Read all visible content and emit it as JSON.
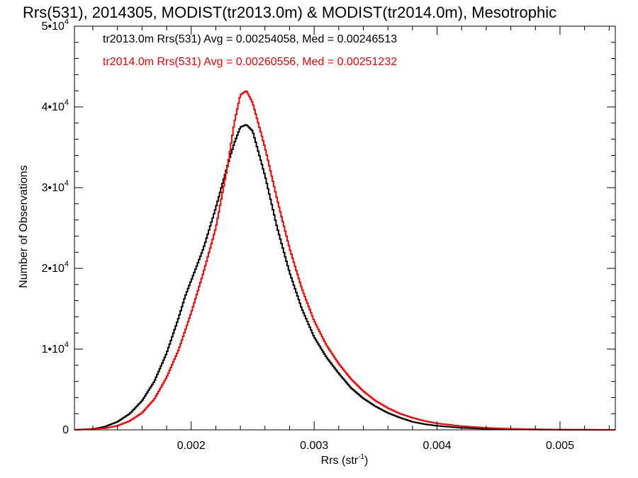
{
  "chart_data": {
    "type": "line",
    "title": "Rrs(531), 2014305, MODIST(tr2013.0m) & MODIST(tr2014.0m), Mesotrophic",
    "xlabel": "Rrs (str",
    "xlabel_sup": "-1",
    "xlabel_close": ")",
    "ylabel": "Number of Observations",
    "xlim": [
      0.00105,
      0.00545
    ],
    "ylim": [
      0,
      50000
    ],
    "x_ticks": [
      0.002,
      0.003,
      0.004,
      0.005
    ],
    "x_tick_labels": [
      "0.002",
      "0.003",
      "0.004",
      "0.005"
    ],
    "y_ticks": [
      0,
      10000,
      20000,
      30000,
      40000,
      50000
    ],
    "y_tick_labels": [
      {
        "mantissa": "0",
        "exp": ""
      },
      {
        "mantissa": "1•10",
        "exp": "4"
      },
      {
        "mantissa": "2•10",
        "exp": "4"
      },
      {
        "mantissa": "3•10",
        "exp": "4"
      },
      {
        "mantissa": "4•10",
        "exp": "4"
      },
      {
        "mantissa": "5•10",
        "exp": "4"
      }
    ],
    "grid": false,
    "legend_position": "top-left",
    "series": [
      {
        "name": "tr2013.0m",
        "label": "tr2013.0m Rrs(531) Avg = 0.00254058, Med = 0.00246513",
        "color": "#000000",
        "x": [
          0.00105,
          0.0012,
          0.0013,
          0.0014,
          0.0015,
          0.0016,
          0.0017,
          0.0018,
          0.0019,
          0.00195,
          0.002,
          0.0021,
          0.0022,
          0.0023,
          0.00235,
          0.0024,
          0.00245,
          0.0025,
          0.0026,
          0.0027,
          0.0028,
          0.0029,
          0.003,
          0.0031,
          0.0032,
          0.0033,
          0.0034,
          0.0035,
          0.0036,
          0.0037,
          0.0038,
          0.0039,
          0.004,
          0.0042,
          0.0044,
          0.0046,
          0.0048,
          0.005,
          0.00545
        ],
        "y": [
          0,
          100,
          400,
          1000,
          2000,
          3600,
          6000,
          9500,
          14000,
          16500,
          18500,
          22500,
          27500,
          33000,
          35500,
          37500,
          37800,
          37000,
          31500,
          25000,
          19500,
          15000,
          11500,
          9000,
          7000,
          5200,
          3900,
          2900,
          2100,
          1500,
          1000,
          700,
          500,
          250,
          120,
          60,
          30,
          15,
          0
        ]
      },
      {
        "name": "tr2014.0m",
        "label": "tr2014.0m Rrs(531) Avg = 0.00260556, Med = 0.00251232",
        "color": "#ff0000",
        "x": [
          0.00105,
          0.0013,
          0.0014,
          0.0015,
          0.0016,
          0.0017,
          0.0018,
          0.0019,
          0.002,
          0.0021,
          0.0022,
          0.0023,
          0.00235,
          0.0024,
          0.00245,
          0.0025,
          0.0026,
          0.0027,
          0.0028,
          0.0029,
          0.003,
          0.0031,
          0.0032,
          0.0033,
          0.0034,
          0.0035,
          0.0036,
          0.0037,
          0.0038,
          0.0039,
          0.004,
          0.0042,
          0.0044,
          0.0046,
          0.0048,
          0.005,
          0.00545
        ],
        "y": [
          0,
          200,
          500,
          1100,
          2100,
          3800,
          6500,
          10000,
          14500,
          19500,
          25000,
          33000,
          38000,
          41500,
          42000,
          40500,
          35000,
          28500,
          22500,
          17500,
          13500,
          10500,
          8200,
          6300,
          4800,
          3600,
          2700,
          2000,
          1500,
          1100,
          800,
          450,
          250,
          130,
          70,
          35,
          0
        ]
      }
    ]
  }
}
